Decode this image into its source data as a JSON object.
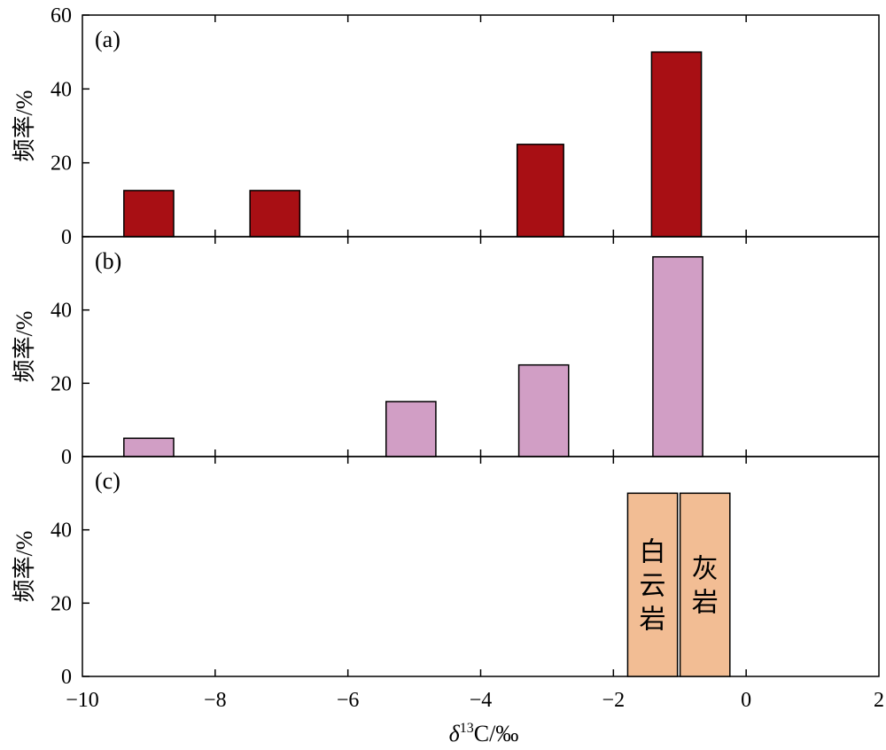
{
  "chart_data": [
    {
      "id": "a",
      "type": "bar",
      "panel_label": "(a)",
      "ylabel": "频率/%",
      "ylim": [
        0,
        60
      ],
      "yticks": [
        0,
        20,
        40,
        60
      ],
      "color": "#a80f14",
      "bars": [
        {
          "x": -9.0,
          "width": 0.75,
          "value": 12.5
        },
        {
          "x": -7.1,
          "width": 0.75,
          "value": 12.5
        },
        {
          "x": -3.1,
          "width": 0.7,
          "value": 25
        },
        {
          "x": -1.05,
          "width": 0.75,
          "value": 50
        }
      ]
    },
    {
      "id": "b",
      "type": "bar",
      "panel_label": "(b)",
      "ylabel": "频率/%",
      "ylim": [
        0,
        60
      ],
      "yticks": [
        0,
        20,
        40
      ],
      "color": "#d19ec5",
      "bars": [
        {
          "x": -9.0,
          "width": 0.75,
          "value": 5
        },
        {
          "x": -5.05,
          "width": 0.75,
          "value": 15
        },
        {
          "x": -3.05,
          "width": 0.75,
          "value": 25
        },
        {
          "x": -1.03,
          "width": 0.75,
          "value": 54.5
        }
      ]
    },
    {
      "id": "c",
      "type": "bar",
      "panel_label": "(c)",
      "ylabel": "频率/%",
      "ylim": [
        0,
        60
      ],
      "yticks": [
        0,
        20,
        40
      ],
      "color": "#f2bd94",
      "bars": [
        {
          "x": -1.41,
          "width": 0.75,
          "value": 50,
          "label": "白云岩"
        },
        {
          "x": -0.62,
          "width": 0.75,
          "value": 50,
          "label": "灰岩"
        }
      ]
    }
  ],
  "x_axis": {
    "xlabel_prefix": "δ",
    "xlabel_sup": "13",
    "xlabel_suffix": "C/‰",
    "xlim": [
      -10,
      2
    ],
    "xticks": [
      -10,
      -8,
      -6,
      -4,
      -2,
      0,
      2
    ],
    "xtick_labels": [
      "−10",
      "−8",
      "−6",
      "−4",
      "−2",
      "0",
      "2"
    ]
  }
}
